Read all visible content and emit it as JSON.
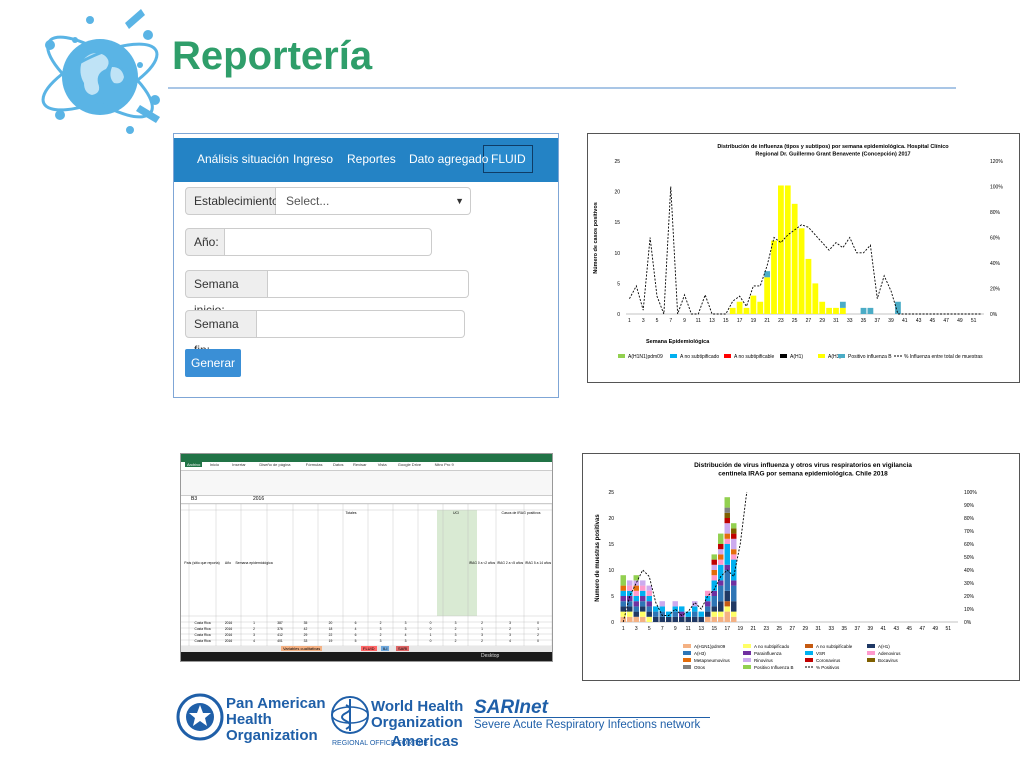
{
  "slide": {
    "title": "Reportería"
  },
  "fluid": {
    "nav": [
      "Análisis situación",
      "Ingreso",
      "Reportes",
      "Dato agregado",
      "FLUID"
    ],
    "active_tab": "FLUID",
    "fields": {
      "establecimiento": {
        "label": "Establecimiento:",
        "value": "Select..."
      },
      "anio": {
        "label": "Año:",
        "value": ""
      },
      "semana_inicio": {
        "label": "Semana inicio:",
        "value": ""
      },
      "semana_fin": {
        "label": "Semana fin:",
        "value": ""
      }
    },
    "button": "Generar"
  },
  "chart1": {
    "chart_data": {
      "type": "bar",
      "title": "Distribución de influenza (tipos y subtipos) por semana epidemiológica. Hospital Clínico Regional Dr. Guillermo Grant Benavente (Concepción) 2017",
      "xlabel": "Semana Epidemiológica",
      "ylabel": "Número de casos positivos",
      "ylim": [
        0,
        25
      ],
      "y2lim": [
        0,
        120
      ],
      "yticks": [
        0,
        5,
        10,
        15,
        20,
        25
      ],
      "y2ticks": [
        "0%",
        "20%",
        "40%",
        "60%",
        "80%",
        "100%",
        "120%"
      ],
      "xticks": [
        "1",
        "3",
        "5",
        "7",
        "9",
        "11",
        "13",
        "15",
        "17",
        "19",
        "21",
        "23",
        "25",
        "27",
        "29",
        "31",
        "33",
        "35",
        "37",
        "39",
        "41",
        "43",
        "45",
        "47",
        "49",
        "51"
      ],
      "weeks": [
        1,
        2,
        3,
        4,
        5,
        6,
        7,
        8,
        9,
        10,
        11,
        12,
        13,
        14,
        15,
        16,
        17,
        18,
        19,
        20,
        21,
        22,
        23,
        24,
        25,
        26,
        27,
        28,
        29,
        30,
        31,
        32,
        33,
        34,
        35,
        36,
        37,
        38,
        39,
        40,
        41,
        42,
        43,
        44,
        45,
        46,
        47,
        48,
        49,
        50,
        51,
        52
      ],
      "series": [
        {
          "name": "A(H1N1)pdm09",
          "color": "#92d050",
          "values": [
            0,
            0,
            0,
            0,
            0,
            0,
            0,
            0,
            0,
            0,
            0,
            0,
            0,
            0,
            0,
            0,
            0,
            0,
            0,
            0,
            0,
            0,
            0,
            0,
            0,
            0,
            0,
            0,
            0,
            0,
            0,
            0,
            0,
            0,
            0,
            0,
            0,
            0,
            0,
            0,
            0,
            0,
            0,
            0,
            0,
            0,
            0,
            0,
            0,
            0,
            0,
            0
          ]
        },
        {
          "name": "A no subtipificado",
          "color": "#00b0f0",
          "values": [
            0,
            0,
            0,
            0,
            0,
            0,
            0,
            0,
            0,
            0,
            0,
            0,
            0,
            0,
            0,
            0,
            0,
            0,
            0,
            0,
            0,
            0,
            0,
            0,
            0,
            0,
            0,
            0,
            0,
            0,
            0,
            0,
            0,
            0,
            0,
            0,
            0,
            0,
            0,
            0,
            0,
            0,
            0,
            0,
            0,
            0,
            0,
            0,
            0,
            0,
            0,
            0
          ]
        },
        {
          "name": "A no subtipificable",
          "color": "#ff0000",
          "values": [
            0,
            0,
            0,
            0,
            0,
            0,
            0,
            0,
            0,
            0,
            0,
            0,
            0,
            0,
            0,
            0,
            0,
            0,
            0,
            0,
            0,
            0,
            0,
            0,
            0,
            0,
            0,
            0,
            0,
            0,
            0,
            0,
            0,
            0,
            0,
            0,
            0,
            0,
            0,
            0,
            0,
            0,
            0,
            0,
            0,
            0,
            0,
            0,
            0,
            0,
            0,
            0
          ]
        },
        {
          "name": "A(H1)",
          "color": "#000000",
          "values": [
            0,
            0,
            0,
            0,
            0,
            0,
            0,
            0,
            0,
            0,
            0,
            0,
            0,
            0,
            0,
            0,
            0,
            0,
            0,
            0,
            0,
            0,
            0,
            0,
            0,
            0,
            0,
            0,
            0,
            0,
            0,
            0,
            0,
            0,
            0,
            0,
            0,
            0,
            0,
            0,
            0,
            0,
            0,
            0,
            0,
            0,
            0,
            0,
            0,
            0,
            0,
            0
          ]
        },
        {
          "name": "A(H3)",
          "color": "#ffff00",
          "values": [
            0,
            0,
            0,
            0,
            0,
            0,
            0,
            0,
            0,
            0,
            0,
            0,
            0,
            0,
            0,
            1,
            2,
            1,
            3,
            2,
            6,
            12,
            21,
            21,
            18,
            14,
            9,
            5,
            2,
            1,
            1,
            1,
            0,
            0,
            0,
            0,
            0,
            0,
            0,
            0,
            0,
            0,
            0,
            0,
            0,
            0,
            0,
            0,
            0,
            0,
            0,
            0
          ]
        },
        {
          "name": "Positivo influenza  B",
          "color": "#4bacc6",
          "values": [
            0,
            0,
            0,
            0,
            0,
            0,
            0,
            0,
            0,
            0,
            0,
            0,
            0,
            0,
            0,
            0,
            0,
            0,
            0,
            0,
            1,
            0,
            0,
            0,
            0,
            0,
            0,
            0,
            0,
            0,
            0,
            1,
            0,
            0,
            1,
            1,
            0,
            0,
            0,
            2,
            0,
            0,
            0,
            0,
            0,
            0,
            0,
            0,
            0,
            0,
            0,
            0
          ]
        }
      ],
      "line": {
        "name": "% Influenza entre total de muestras",
        "values": [
          12,
          22,
          3,
          60,
          14,
          0,
          100,
          0,
          15,
          0,
          0,
          15,
          0,
          0,
          0,
          10,
          14,
          6,
          22,
          22,
          38,
          60,
          56,
          62,
          66,
          70,
          68,
          62,
          56,
          50,
          56,
          52,
          60,
          48,
          48,
          54,
          12,
          30,
          18,
          0,
          0,
          0,
          0,
          0,
          0,
          0,
          0,
          0,
          0,
          0,
          0,
          0
        ]
      },
      "legend": [
        "A(H1N1)pdm09",
        "A no subtipificado",
        "A no subtipificable",
        "A(H1)",
        "A(H3)",
        "Positivo influenza  B",
        "% Influenza entre total de muestras"
      ]
    }
  },
  "chart2": {
    "chart_data": {
      "type": "bar",
      "title": "Distribución de virus influenza y otros virus respiratorios en vigilancia centinela IRAG por semana epidemiológica. Chile 2018",
      "ylabel": "Numero de muestras positivas",
      "ylim": [
        0,
        25
      ],
      "y2lim": [
        0,
        100
      ],
      "yticks": [
        0,
        5,
        10,
        15,
        20,
        25
      ],
      "y2ticks": [
        "0%",
        "10%",
        "20%",
        "30%",
        "40%",
        "50%",
        "60%",
        "70%",
        "80%",
        "90%",
        "100%"
      ],
      "xticks": [
        "1",
        "3",
        "5",
        "7",
        "9",
        "11",
        "13",
        "15",
        "17",
        "19",
        "21",
        "23",
        "25",
        "27",
        "29",
        "31",
        "33",
        "35",
        "37",
        "39",
        "41",
        "43",
        "45",
        "47",
        "49",
        "51"
      ],
      "weeks": [
        1,
        2,
        3,
        4,
        5,
        6,
        7,
        8,
        9,
        10,
        11,
        12,
        13,
        14,
        15,
        16,
        17,
        18,
        19,
        20
      ],
      "series": [
        {
          "name": "A(H1N1)pdm09",
          "color": "#f4b183",
          "values": [
            1,
            1,
            1,
            1,
            0,
            0,
            0,
            0,
            0,
            0,
            0,
            0,
            0,
            1,
            1,
            1,
            2,
            1,
            0,
            0
          ]
        },
        {
          "name": "A no subtipificado",
          "color": "#ffff66",
          "values": [
            1,
            1,
            0,
            1,
            1,
            0,
            0,
            0,
            0,
            0,
            0,
            0,
            0,
            0,
            1,
            1,
            1,
            1,
            0,
            0
          ]
        },
        {
          "name": "A no subtipificable",
          "color": "#c55a11",
          "values": [
            0,
            0,
            0,
            0,
            0,
            0,
            0,
            0,
            0,
            0,
            0,
            0,
            0,
            0,
            0,
            0,
            1,
            0,
            0,
            0
          ]
        },
        {
          "name": "A(H1)",
          "color": "#1f3864",
          "values": [
            1,
            1,
            1,
            1,
            1,
            1,
            1,
            1,
            1,
            1,
            1,
            1,
            1,
            1,
            1,
            2,
            2,
            2,
            0,
            0
          ]
        },
        {
          "name": "A(H3)",
          "color": "#2e75b6",
          "values": [
            1,
            1,
            1,
            1,
            1,
            1,
            1,
            0,
            1,
            0,
            0,
            1,
            0,
            1,
            2,
            3,
            4,
            3,
            0,
            0
          ]
        },
        {
          "name": "Parainfluenza",
          "color": "#7030a0",
          "values": [
            1,
            1,
            1,
            1,
            1,
            0,
            0,
            0,
            0,
            1,
            0,
            0,
            0,
            1,
            1,
            1,
            1,
            1,
            0,
            0
          ]
        },
        {
          "name": "VSR",
          "color": "#00b0f0",
          "values": [
            1,
            1,
            1,
            1,
            1,
            1,
            1,
            1,
            1,
            1,
            1,
            1,
            1,
            1,
            2,
            3,
            4,
            4,
            0,
            0
          ]
        },
        {
          "name": "Adenovirus",
          "color": "#ff99cc",
          "values": [
            0,
            1,
            1,
            1,
            1,
            0,
            0,
            0,
            0,
            0,
            0,
            0,
            0,
            1,
            1,
            1,
            1,
            1,
            0,
            0
          ]
        },
        {
          "name": "Metapneumovirus",
          "color": "#e46c0a",
          "values": [
            1,
            0,
            1,
            0,
            0,
            0,
            0,
            0,
            0,
            0,
            0,
            0,
            0,
            0,
            1,
            1,
            1,
            1,
            0,
            0
          ]
        },
        {
          "name": "Rinovirus",
          "color": "#ccaaee",
          "values": [
            0,
            1,
            1,
            1,
            1,
            0,
            1,
            0,
            1,
            0,
            0,
            1,
            0,
            0,
            1,
            1,
            2,
            2,
            0,
            0
          ]
        },
        {
          "name": "Coronavirus",
          "color": "#c00000",
          "values": [
            0,
            0,
            0,
            0,
            0,
            0,
            0,
            0,
            0,
            0,
            0,
            0,
            0,
            0,
            1,
            1,
            1,
            1,
            0,
            0
          ]
        },
        {
          "name": "Bocavirus",
          "color": "#7f6000",
          "values": [
            0,
            0,
            0,
            0,
            0,
            0,
            0,
            0,
            0,
            0,
            0,
            0,
            0,
            0,
            0,
            0,
            1,
            1,
            0,
            0
          ]
        },
        {
          "name": "Otros",
          "color": "#808080",
          "values": [
            0,
            0,
            0,
            0,
            0,
            0,
            0,
            0,
            0,
            0,
            0,
            0,
            0,
            0,
            0,
            0,
            1,
            0,
            0,
            0
          ]
        },
        {
          "name": "Positivo Influenza  B",
          "color": "#92d050",
          "values": [
            2,
            0,
            1,
            0,
            0,
            0,
            0,
            0,
            0,
            0,
            0,
            0,
            0,
            0,
            1,
            2,
            2,
            1,
            0,
            0
          ]
        }
      ],
      "line": {
        "name": "% Positivos",
        "values": [
          0,
          20,
          30,
          40,
          35,
          15,
          5,
          5,
          10,
          5,
          8,
          15,
          10,
          20,
          25,
          35,
          40,
          35,
          60,
          100
        ]
      },
      "legend": [
        "A(H1N1)pdm09",
        "A no subtipificado",
        "A no subtipificable",
        "A(H1)",
        "A(H3)",
        "Parainfluenza",
        "VSR",
        "Adenovirus",
        "Metapneumovirus",
        "Rinovirus",
        "Coronavirus",
        "Bocavirus",
        "Otros",
        "Positivo Influenza  B",
        "% Positivos"
      ]
    }
  },
  "spreadsheet": {
    "tabs": [
      "Archivo",
      "Inicio",
      "Insertar",
      "Diseño de página",
      "Fórmulas",
      "Datos",
      "Revisar",
      "Vista",
      "Google Drive",
      "Nitro Pro 9"
    ],
    "cell_ref": "B3",
    "formula": "2016",
    "headers": [
      "País (sitio que reporta)",
      "Año",
      "Semana epidemiológica",
      "Totales",
      "UCI",
      "Casos de IRAG positivos"
    ],
    "group_cols": [
      "IRAG 0 a <2 años",
      "IRAG 2 a <5 años",
      "IRAG 5 a 14 años"
    ],
    "rows": [
      [
        "Costa Rica",
        "2016",
        "1",
        "387",
        "35",
        "20",
        "6",
        "2",
        "3",
        "0",
        "3",
        "2",
        "3",
        "0"
      ],
      [
        "Costa Rica",
        "2016",
        "2",
        "376",
        "42",
        "18",
        "4",
        "3",
        "3",
        "0",
        "2",
        "1",
        "2",
        "1"
      ],
      [
        "Costa Rica",
        "2016",
        "3",
        "412",
        "29",
        "22",
        "6",
        "2",
        "4",
        "1",
        "3",
        "3",
        "3",
        "2"
      ],
      [
        "Costa Rica",
        "2016",
        "4",
        "401",
        "33",
        "19",
        "5",
        "3",
        "3",
        "0",
        "2",
        "2",
        "4",
        "0"
      ]
    ],
    "sheet_tabs": [
      "Variables cualitativas",
      "FLUID",
      "ILI",
      "SARI"
    ],
    "status": "Desktop"
  },
  "footer": {
    "paho": [
      "Pan American",
      "Health",
      "Organization"
    ],
    "who": [
      "World Health",
      "Organization"
    ],
    "who_region": "REGIONAL OFFICE FOR THE",
    "americas": "Americas",
    "sarinet": "SARInet",
    "sarinet_desc": "Severe Acute Respiratory Infections network"
  },
  "colors": {
    "title": "#2f9e6a",
    "navbar": "#2483c5",
    "button": "#3a8fd6"
  }
}
